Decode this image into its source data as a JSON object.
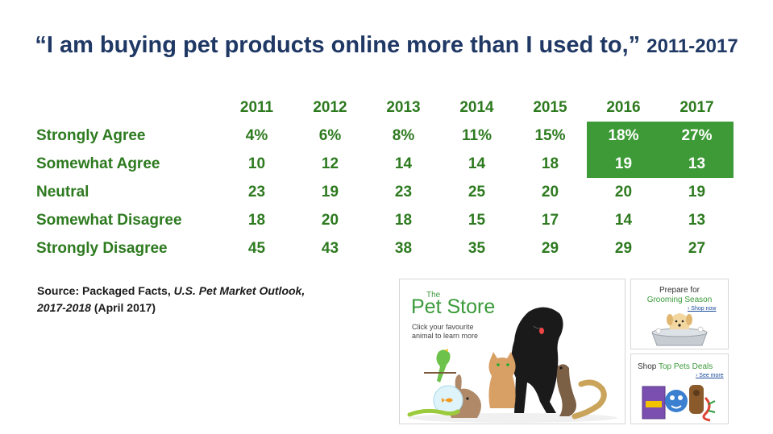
{
  "title": {
    "main": "“I am buying pet products online more than I used to,”",
    "years": "2011-2017"
  },
  "table": {
    "years": [
      "2011",
      "2012",
      "2013",
      "2014",
      "2015",
      "2016",
      "2017"
    ],
    "rows": [
      {
        "label": "Strongly Agree",
        "values": [
          "4%",
          "6%",
          "8%",
          "11%",
          "15%",
          "18%",
          "27%"
        ]
      },
      {
        "label": "Somewhat Agree",
        "values": [
          "10",
          "12",
          "14",
          "14",
          "18",
          "19",
          "13"
        ]
      },
      {
        "label": "Neutral",
        "values": [
          "23",
          "19",
          "23",
          "25",
          "20",
          "20",
          "19"
        ]
      },
      {
        "label": "Somewhat Disagree",
        "values": [
          "18",
          "20",
          "18",
          "15",
          "17",
          "14",
          "13"
        ]
      },
      {
        "label": "Strongly Disagree",
        "values": [
          "45",
          "43",
          "38",
          "35",
          "29",
          "29",
          "27"
        ]
      }
    ],
    "highlight_color": "#3d9a36"
  },
  "source": {
    "prefix": "Source:  Packaged Facts,",
    "publication_1": "U.S. Pet Market Outlook,",
    "publication_2": "2017-2018",
    "suffix": "(April 2017)"
  },
  "ads": {
    "pet_store": {
      "the": "The",
      "name": "Pet Store",
      "subtitle": "Click your favourite animal to learn more"
    },
    "grooming": {
      "line1": "Prepare for",
      "line2": "Grooming Season",
      "link": "› Shop now"
    },
    "deals": {
      "prefix": "Shop",
      "highlight": "Top Pets Deals",
      "link": "› See more"
    }
  },
  "colors": {
    "title": "#1f3864",
    "table_text": "#2d7a1f",
    "accent": "#3a9a3a"
  }
}
